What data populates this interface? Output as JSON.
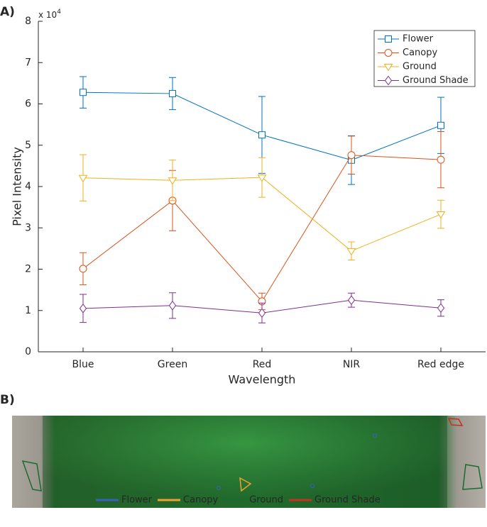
{
  "panel_labels": [
    "A)",
    "B)"
  ],
  "chart_data": {
    "type": "line",
    "ylabel": "Pixel Intensity",
    "xlabel": "Wavelength",
    "y_multiplier": {
      "base": "x 10",
      "exponent": "4"
    },
    "categories": [
      "Blue",
      "Green",
      "Red",
      "NIR",
      "Red edge"
    ],
    "ylim": [
      0,
      8
    ],
    "yticks": [
      0,
      1,
      2,
      3,
      4,
      5,
      6,
      7,
      8
    ],
    "legend": "upper right",
    "series": [
      {
        "name": "Flower",
        "color": "#0072bd",
        "marker": "square",
        "values": [
          6.28,
          6.25,
          5.25,
          4.64,
          5.48
        ],
        "errors": [
          0.38,
          0.39,
          0.93,
          0.59,
          0.68
        ]
      },
      {
        "name": "Canopy",
        "color": "#d95319",
        "marker": "circle",
        "values": [
          2.01,
          3.66,
          1.22,
          4.76,
          4.65
        ],
        "errors": [
          0.39,
          0.73,
          0.2,
          0.46,
          0.68
        ]
      },
      {
        "name": "Ground",
        "color": "#edb120",
        "marker": "triangle-down",
        "values": [
          4.21,
          4.15,
          4.22,
          2.44,
          3.33
        ],
        "errors": [
          0.56,
          0.49,
          0.48,
          0.22,
          0.34
        ]
      },
      {
        "name": "Ground Shade",
        "color": "#7e2f8e",
        "marker": "diamond",
        "values": [
          1.05,
          1.12,
          0.94,
          1.25,
          1.06
        ],
        "errors": [
          0.34,
          0.31,
          0.24,
          0.17,
          0.2
        ]
      }
    ]
  },
  "image_legend": [
    {
      "name": "Flower",
      "color": "#3a5fc0"
    },
    {
      "name": "Canopy",
      "color": "#f0a030"
    },
    {
      "name": "Ground",
      "color": "#1a6b30"
    },
    {
      "name": "Ground Shade",
      "color": "#c83020"
    }
  ]
}
